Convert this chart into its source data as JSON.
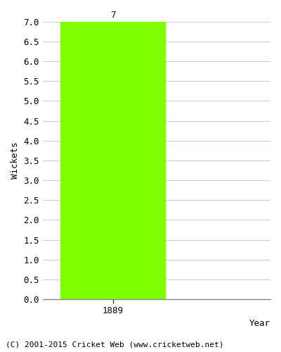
{
  "years": [
    1889
  ],
  "wickets": [
    7
  ],
  "bar_color": "#7fff00",
  "bar_width": 0.6,
  "ylim": [
    0,
    7.0
  ],
  "yticks": [
    0.0,
    0.5,
    1.0,
    1.5,
    2.0,
    2.5,
    3.0,
    3.5,
    4.0,
    4.5,
    5.0,
    5.5,
    6.0,
    6.5,
    7.0
  ],
  "xlim": [
    1888.6,
    1889.9
  ],
  "xlabel": "Year",
  "ylabel": "Wickets",
  "label_color": "#00008b",
  "label_fontsize": 9,
  "axis_label_fontsize": 9,
  "tick_fontsize": 9,
  "footer_text": "(C) 2001-2015 Cricket Web (www.cricketweb.net)",
  "footer_fontsize": 8,
  "background_color": "#ffffff",
  "plot_bg_color": "#ffffff",
  "grid_color": "#cccccc"
}
